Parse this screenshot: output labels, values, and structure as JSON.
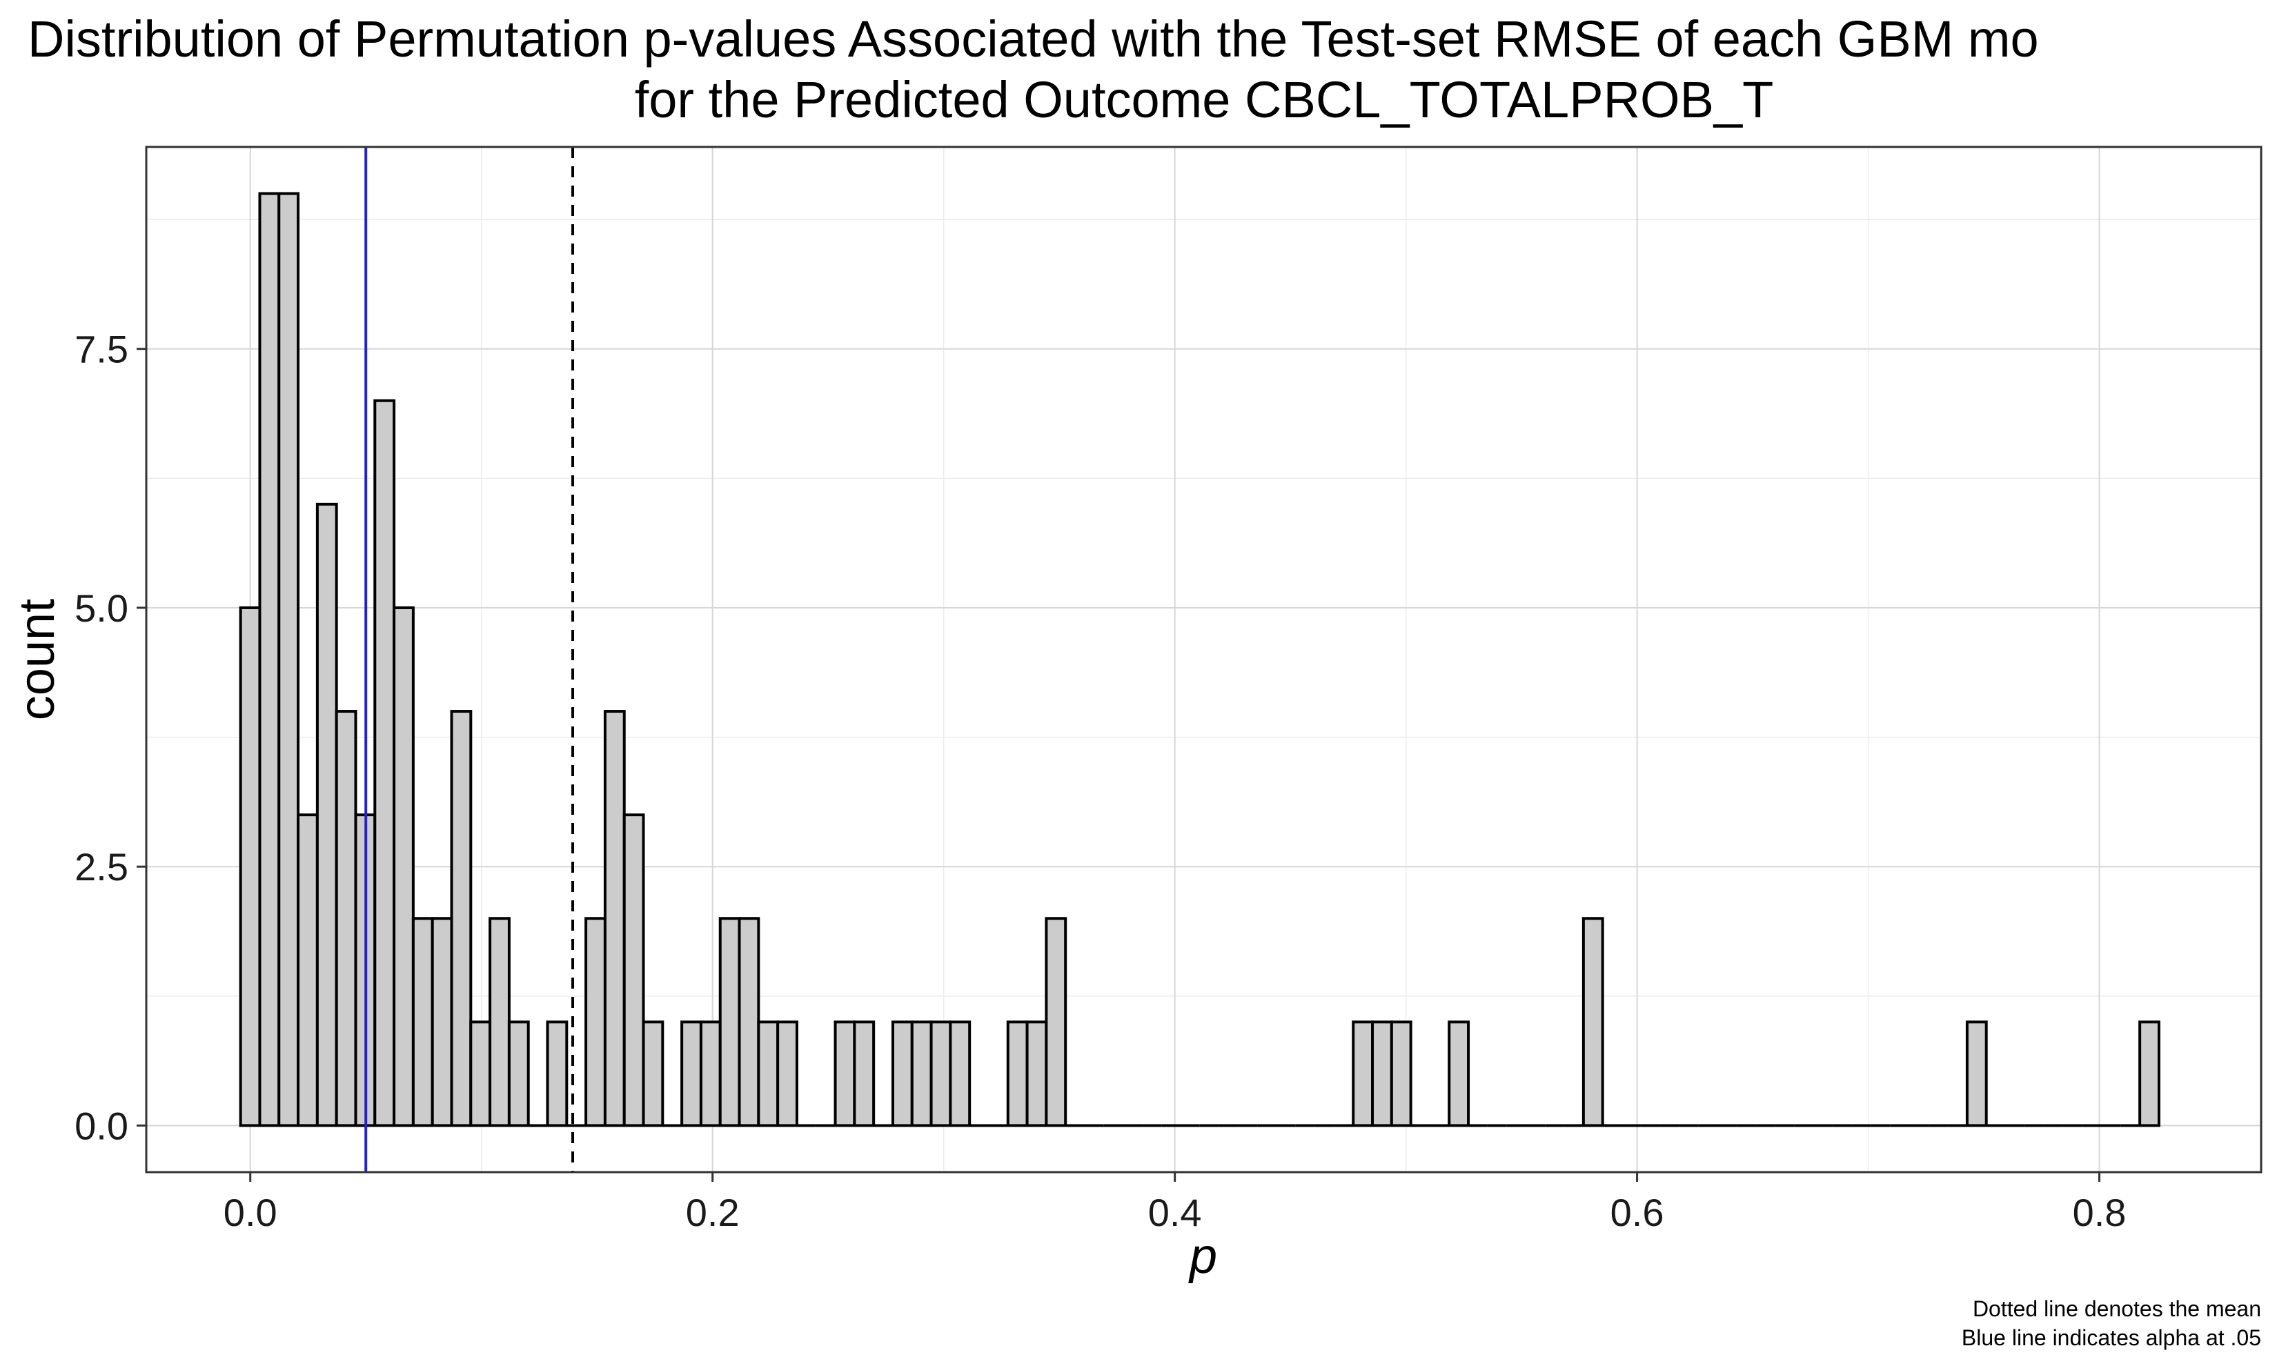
{
  "chart_data": {
    "type": "bar",
    "title": "Distribution of Permutation p-values Associated with the Test-set RMSE of each GBM mo",
    "subtitle": "for the Predicted Outcome CBCL_TOTALPROB_T",
    "xlabel": "p",
    "ylabel": "count",
    "caption": [
      "Dotted line denotes the mean",
      "Blue line indicates alpha at .05"
    ],
    "xlim": [
      -0.045,
      0.87
    ],
    "ylim": [
      -0.45,
      9.45
    ],
    "x_ticks": [
      0.0,
      0.2,
      0.4,
      0.6,
      0.8
    ],
    "x_tick_labels": [
      "0.0",
      "0.2",
      "0.4",
      "0.6",
      "0.8"
    ],
    "y_ticks": [
      0.0,
      2.5,
      5.0,
      7.5
    ],
    "y_tick_labels": [
      "0.0",
      "2.5",
      "5.0",
      "7.5"
    ],
    "grid": true,
    "bin_width": 0.0083,
    "bin_start": -0.0042,
    "counts": [
      5,
      9,
      9,
      3,
      6,
      4,
      3,
      7,
      5,
      2,
      2,
      4,
      1,
      2,
      1,
      0,
      1,
      0,
      2,
      4,
      3,
      1,
      0,
      1,
      1,
      2,
      2,
      1,
      1,
      0,
      0,
      1,
      1,
      0,
      1,
      1,
      1,
      1,
      0,
      0,
      1,
      1,
      2,
      0,
      0,
      0,
      0,
      0,
      0,
      0,
      0,
      0,
      0,
      0,
      0,
      0,
      0,
      0,
      1,
      1,
      1,
      0,
      0,
      1,
      0,
      0,
      0,
      0,
      0,
      0,
      2,
      0,
      0,
      0,
      0,
      0,
      0,
      0,
      0,
      0,
      0,
      0,
      0,
      0,
      0,
      0,
      0,
      0,
      0,
      0,
      1,
      0,
      0,
      0,
      0,
      0,
      0,
      0,
      0,
      1
    ],
    "reference_lines": [
      {
        "name": "alpha",
        "x": 0.05,
        "color": "#2222cc",
        "style": "solid"
      },
      {
        "name": "mean",
        "x": 0.1395,
        "color": "#000000",
        "style": "dashed"
      }
    ],
    "bar_fill": "#cccccc",
    "bar_stroke": "#000000"
  }
}
